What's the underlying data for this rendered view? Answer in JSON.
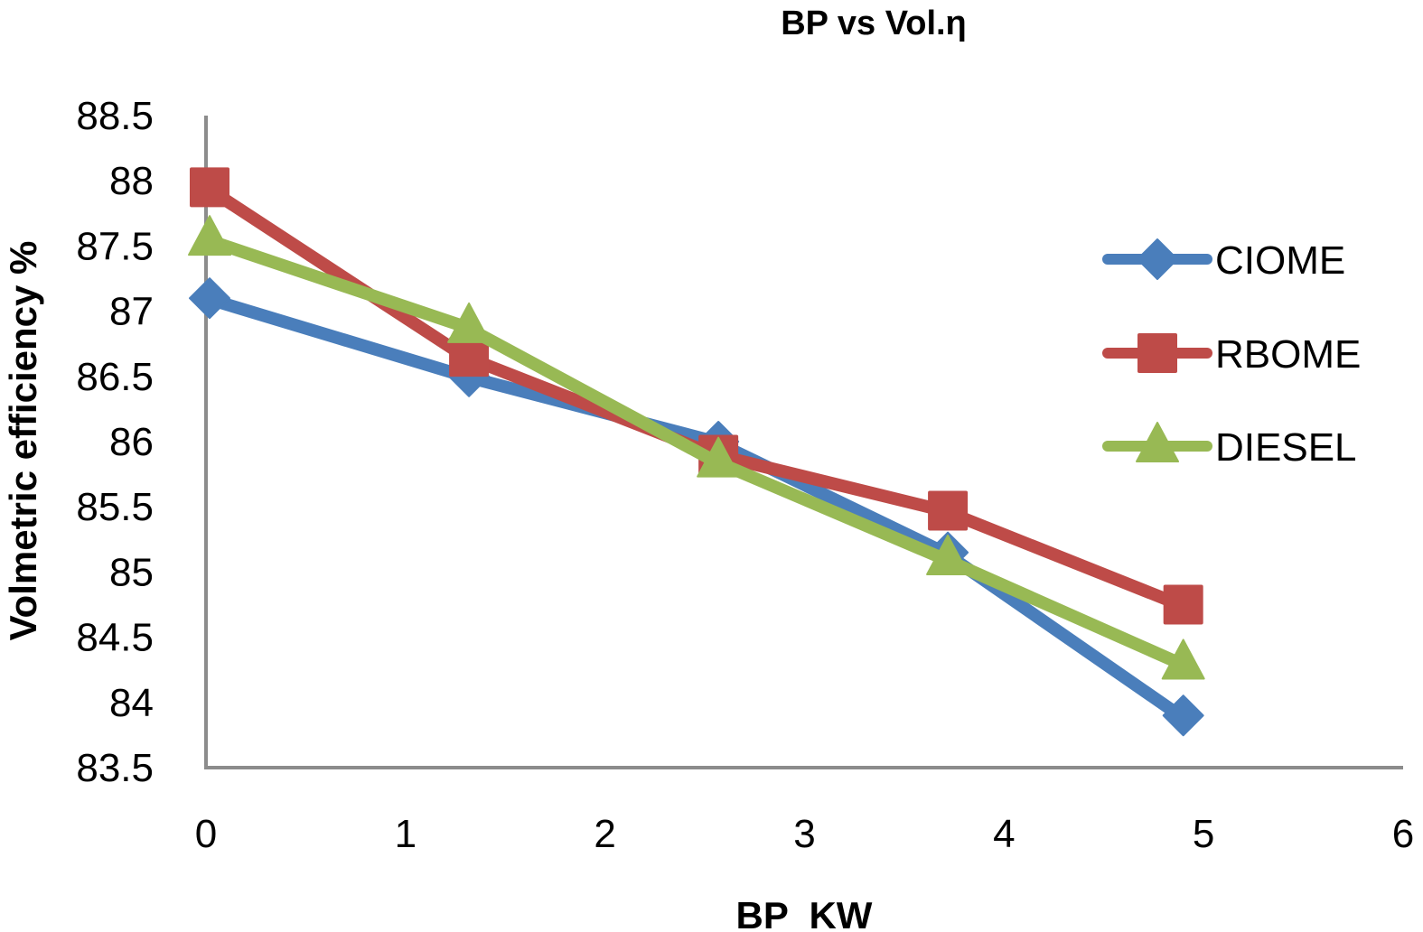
{
  "chart_data": {
    "type": "line",
    "title": "BP vs Vol.η",
    "xlabel": "BP  KW",
    "ylabel": "Volmetric efficiency %",
    "xlim": [
      0,
      6
    ],
    "ylim": [
      83.5,
      88.5
    ],
    "xticks": [
      0,
      1,
      2,
      3,
      4,
      5,
      6
    ],
    "yticks": [
      83.5,
      84,
      84.5,
      85,
      85.5,
      86,
      86.5,
      87,
      87.5,
      88,
      88.5
    ],
    "xtick_labels": [
      "0",
      "1",
      "2",
      "3",
      "4",
      "5",
      "6"
    ],
    "ytick_labels": [
      "83.5",
      "84",
      "84.5",
      "85",
      "85.5",
      "86",
      "86.5",
      "87",
      "87.5",
      "88",
      "88.5"
    ],
    "grid": false,
    "legend_position": "right",
    "x": [
      0,
      1.3,
      2.55,
      3.7,
      4.88
    ],
    "series": [
      {
        "name": "CIOME",
        "marker": "diamond",
        "color": "#4a7ebb",
        "values": [
          87.1,
          86.5,
          86.0,
          85.15,
          83.9
        ]
      },
      {
        "name": "RBOME",
        "marker": "square",
        "color": "#be4b48",
        "values": [
          87.95,
          86.65,
          85.9,
          85.47,
          84.75
        ]
      },
      {
        "name": "DIESEL",
        "marker": "triangle",
        "color": "#98b954",
        "values": [
          87.55,
          86.88,
          85.85,
          85.1,
          84.3
        ]
      }
    ],
    "axis_color": "#8c8c8c"
  }
}
